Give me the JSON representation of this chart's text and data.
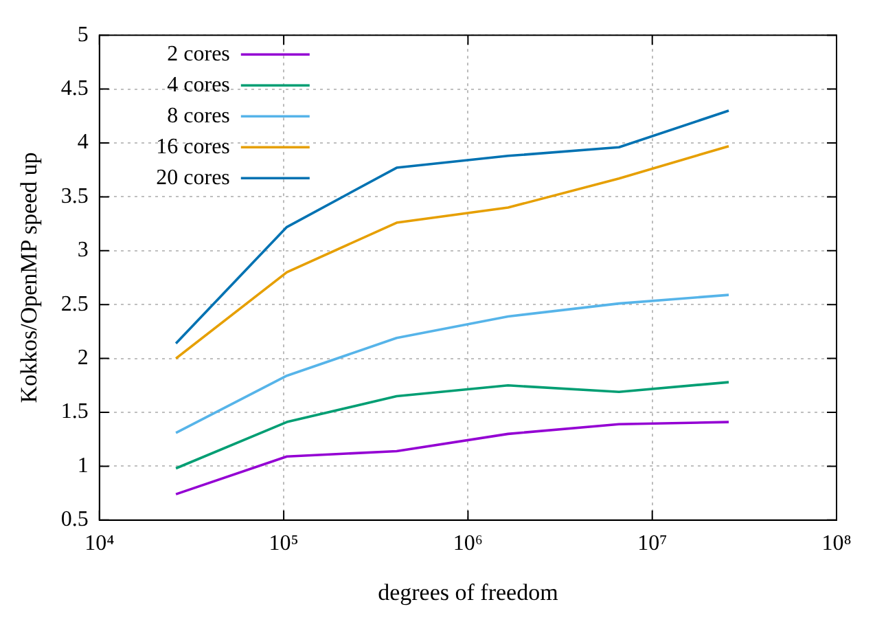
{
  "chart_data": {
    "type": "line",
    "xlabel": "degrees of freedom",
    "ylabel": "Kokkos/OpenMP speed up",
    "x": [
      26000,
      104000,
      410000,
      1650000,
      6600000,
      26000000
    ],
    "series": [
      {
        "name": "2 cores",
        "color": "#9400d3",
        "values": [
          0.74,
          1.09,
          1.14,
          1.3,
          1.39,
          1.41
        ]
      },
      {
        "name": "4 cores",
        "color": "#009e73",
        "values": [
          0.98,
          1.41,
          1.65,
          1.75,
          1.69,
          1.78
        ]
      },
      {
        "name": "8 cores",
        "color": "#56b4e9",
        "values": [
          1.31,
          1.84,
          2.19,
          2.39,
          2.51,
          2.59
        ]
      },
      {
        "name": "16 cores",
        "color": "#e69f00",
        "values": [
          2.0,
          2.8,
          3.26,
          3.4,
          3.67,
          3.97
        ]
      },
      {
        "name": "20 cores",
        "color": "#0072b2",
        "values": [
          2.14,
          3.22,
          3.77,
          3.88,
          3.96,
          4.3
        ]
      }
    ],
    "log": "x",
    "xlim": [
      10000,
      100000000
    ],
    "xticks": [
      {
        "value": 10000,
        "label": "10⁴"
      },
      {
        "value": 100000,
        "label": "10⁵"
      },
      {
        "value": 1000000,
        "label": "10⁶"
      },
      {
        "value": 10000000,
        "label": "10⁷"
      },
      {
        "value": 100000000,
        "label": "10⁸"
      }
    ],
    "ylim": [
      0.5,
      5
    ],
    "yticks": [
      0.5,
      1,
      1.5,
      2,
      2.5,
      3,
      3.5,
      4,
      4.5,
      5
    ],
    "grid": true,
    "legend": "top left",
    "marker": "none",
    "line_style": "solid"
  }
}
